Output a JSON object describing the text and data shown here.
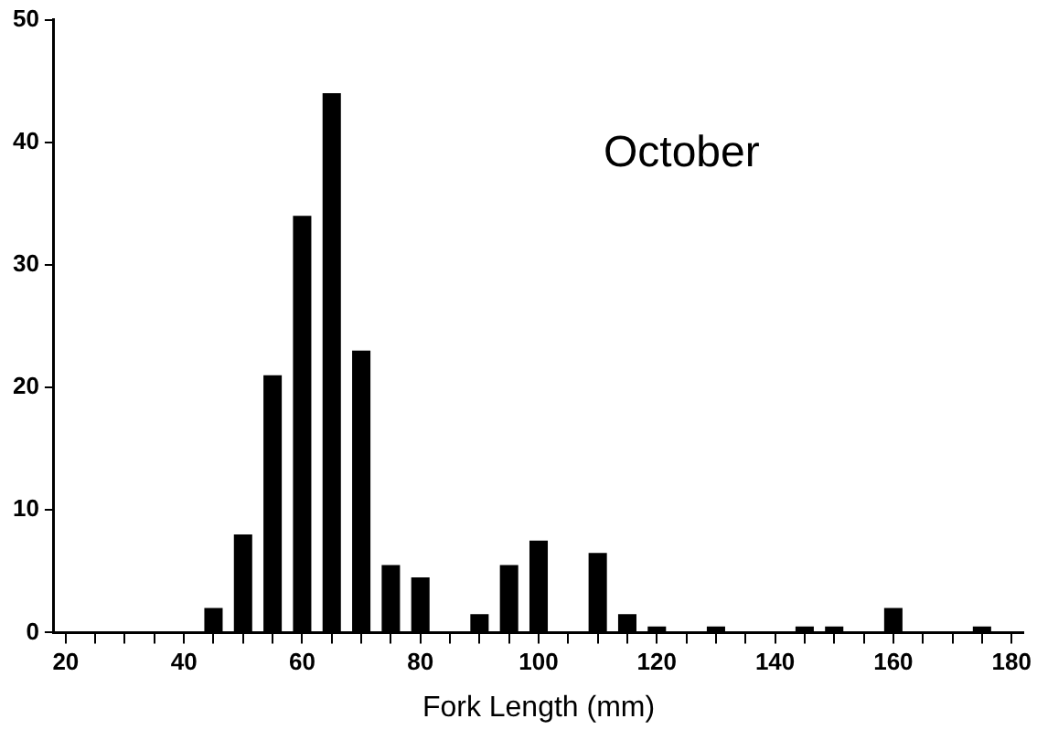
{
  "chart_data": {
    "type": "bar",
    "xlabel": "Fork Length (mm)",
    "annotations": [
      "October"
    ],
    "x": [
      45,
      50,
      55,
      60,
      65,
      70,
      75,
      80,
      85,
      90,
      95,
      100,
      105,
      110,
      115,
      120,
      125,
      130,
      135,
      140,
      145,
      150,
      155,
      160,
      165,
      170,
      175
    ],
    "values": [
      2,
      8,
      21,
      34,
      44,
      23,
      5.5,
      4.5,
      0,
      1.5,
      5.5,
      7.5,
      0,
      6.5,
      1.5,
      0.5,
      0,
      0.5,
      0,
      0,
      0.5,
      0.5,
      0,
      2,
      0,
      0,
      0.5
    ],
    "color": "#000000",
    "xlim": [
      18,
      182
    ],
    "xticks": [
      20,
      {
        "value": 25,
        "label": null
      },
      {
        "value": 30,
        "label": null
      },
      {
        "value": 35,
        "label": null
      },
      40,
      {
        "value": 45,
        "label": null
      },
      {
        "value": 50,
        "label": null
      },
      {
        "value": 55,
        "label": null
      },
      60,
      {
        "value": 65,
        "label": null
      },
      {
        "value": 70,
        "label": null
      },
      {
        "value": 75,
        "label": null
      },
      80,
      {
        "value": 85,
        "label": null
      },
      {
        "value": 90,
        "label": null
      },
      {
        "value": 95,
        "label": null
      },
      100,
      {
        "value": 105,
        "label": null
      },
      {
        "value": 110,
        "label": null
      },
      {
        "value": 115,
        "label": null
      },
      120,
      {
        "value": 125,
        "label": null
      },
      {
        "value": 130,
        "label": null
      },
      {
        "value": 135,
        "label": null
      },
      140,
      {
        "value": 145,
        "label": null
      },
      {
        "value": 150,
        "label": null
      },
      {
        "value": 155,
        "label": null
      },
      160,
      {
        "value": 165,
        "label": null
      },
      {
        "value": 170,
        "label": null
      },
      {
        "value": 175,
        "label": null
      },
      180
    ],
    "ylim": [
      0,
      50
    ],
    "yticks": [
      0,
      10,
      20,
      30,
      40,
      50
    ],
    "grid": false,
    "legend": false
  }
}
